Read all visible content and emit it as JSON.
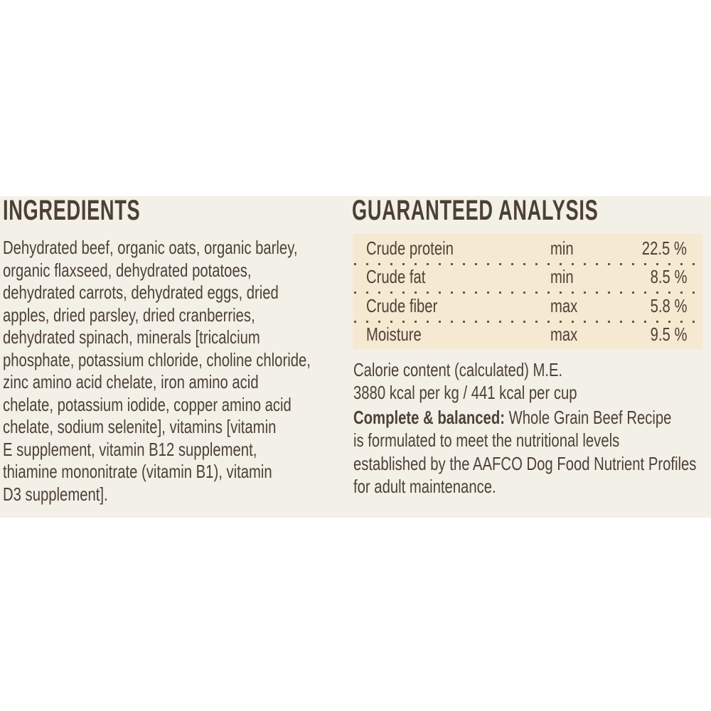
{
  "label": {
    "colors": {
      "page_bg": "#ffffff",
      "band_bg": "#f3f0e8",
      "table_bg": "#f5e9d2",
      "text": "#4e4136",
      "dot_separator": "#6b543d"
    },
    "ingredients": {
      "heading": "INGREDIENTS",
      "lines": [
        "Dehydrated beef, organic oats, organic barley,",
        "organic flaxseed, dehydrated potatoes,",
        "dehydrated carrots, dehydrated eggs, dried",
        "apples, dried parsley, dried cranberries,",
        "dehydrated spinach, minerals [tricalcium",
        "phosphate, potassium chloride, choline chloride,",
        "zinc amino acid chelate, iron amino acid",
        "chelate, potassium iodide, copper amino acid",
        "chelate, sodium selenite], vitamins [vitamin",
        "E supplement, vitamin B12 supplement,",
        "thiamine mononitrate (vitamin B1), vitamin",
        "D3 supplement]."
      ]
    },
    "analysis": {
      "heading": "GUARANTEED ANALYSIS",
      "table": {
        "rows": [
          {
            "nutrient": "Crude protein",
            "basis": "min",
            "value": "22.5 %"
          },
          {
            "nutrient": "Crude fat",
            "basis": "min",
            "value": "8.5 %"
          },
          {
            "nutrient": "Crude fiber",
            "basis": "max",
            "value": "5.8 %"
          },
          {
            "nutrient": "Moisture",
            "basis": "max",
            "value": "9.5 %"
          }
        ]
      },
      "calorie": {
        "line1": "Calorie content (calculated) M.E.",
        "line2": "3880 kcal per kg / 441 kcal per cup"
      },
      "aafco": {
        "bold_label": "Complete & balanced:",
        "line1_rest": "Whole Grain Beef Recipe",
        "lines": [
          "is formulated to meet the nutritional levels",
          "established by the AAFCO Dog Food Nutrient Profiles",
          "for adult maintenance."
        ]
      }
    }
  }
}
